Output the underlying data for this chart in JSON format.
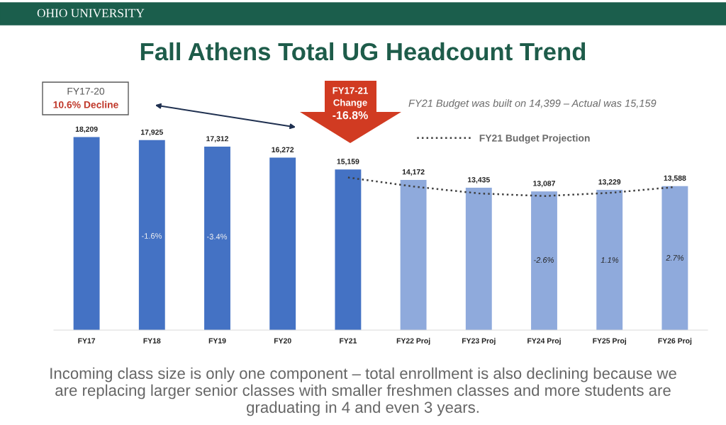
{
  "chart_data": {
    "type": "bar",
    "title": "Fall Athens Total UG Headcount Trend",
    "categories": [
      "FY17",
      "FY18",
      "FY19",
      "FY20",
      "FY21",
      "FY22 Proj",
      "FY23 Proj",
      "FY24 Proj",
      "FY25 Proj",
      "FY26 Proj"
    ],
    "series": [
      {
        "values": [
          18209,
          17925,
          17312,
          16272,
          15159,
          14172,
          13435,
          13087,
          13229,
          13588
        ],
        "colors": [
          "#4472c4",
          "#4472c4",
          "#4472c4",
          "#4472c4",
          "#4472c4",
          "#8faadc",
          "#8faadc",
          "#8faadc",
          "#8faadc",
          "#8faadc"
        ],
        "value_labels": [
          "18,209",
          "17,925",
          "17,312",
          "16,272",
          "15,159",
          "14,172",
          "13,435",
          "13,087",
          "13,229",
          "13,588"
        ]
      },
      {
        "type": "line",
        "name": "FY21 Budget Projection",
        "color": "#3f3f3f",
        "line_style": "dotted",
        "values": [
          null,
          null,
          null,
          null,
          14400,
          13550,
          12900,
          12650,
          12950,
          13500
        ]
      }
    ],
    "tick_labels": "x",
    "legend": "top right",
    "annotations": [
      "OHIO UNIVERSITY",
      "FY17-20",
      "10.6% Decline",
      "FY17-21",
      "Change",
      "-16.8%",
      "FY21 Budget was built on 14,399 – Actual was 15,159",
      "Incoming class size is only one component – total enrollment is also declining because we are replacing larger senior classes with smaller freshmen classes and more students are graduating in 4 and even 3 years.",
      "-1.6%",
      "-3.4%",
      "-2.6%",
      "1.1%",
      "2.7%"
    ]
  }
}
